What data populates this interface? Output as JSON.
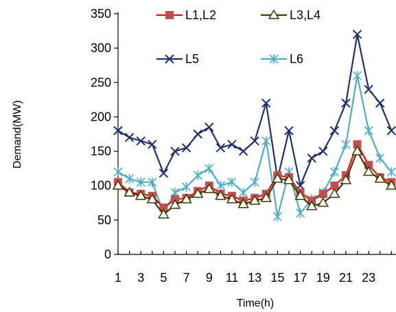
{
  "chart_data": {
    "type": "line",
    "xlabel": "Time(h)",
    "ylabel": "Demand(MW)",
    "ylim": [
      0,
      350
    ],
    "yticks": [
      0,
      50,
      100,
      150,
      200,
      250,
      300,
      350
    ],
    "x": [
      1,
      2,
      3,
      4,
      5,
      6,
      7,
      8,
      9,
      10,
      11,
      12,
      13,
      14,
      15,
      16,
      17,
      18,
      19,
      20,
      21,
      22,
      23,
      24,
      25
    ],
    "xtick_labels": [
      "1",
      "3",
      "5",
      "7",
      "9",
      "11",
      "13",
      "15",
      "17",
      "19",
      "21",
      "23"
    ],
    "xtick_positions": [
      1,
      3,
      5,
      7,
      9,
      11,
      13,
      15,
      17,
      19,
      21,
      23
    ],
    "legend_position": "top",
    "series": [
      {
        "name": "L1,L2",
        "color": "#ff0000",
        "marker": "square",
        "marker_color": "#c0504d",
        "values": [
          105,
          90,
          88,
          85,
          68,
          80,
          82,
          92,
          100,
          88,
          85,
          78,
          82,
          88,
          115,
          112,
          90,
          78,
          88,
          100,
          115,
          160,
          130,
          112,
          105
        ]
      },
      {
        "name": "L3,L4",
        "color": "#3a3a00",
        "marker": "triangle",
        "marker_color": "#3a3a00",
        "values": [
          100,
          90,
          85,
          80,
          58,
          72,
          80,
          88,
          95,
          85,
          80,
          73,
          78,
          82,
          110,
          108,
          85,
          70,
          75,
          88,
          108,
          150,
          120,
          110,
          100
        ]
      },
      {
        "name": "L5",
        "color": "#1f2f6e",
        "marker": "x",
        "marker_color": "#1f2f6e",
        "values": [
          180,
          170,
          165,
          160,
          118,
          150,
          155,
          175,
          185,
          155,
          160,
          150,
          165,
          220,
          110,
          180,
          100,
          140,
          150,
          180,
          220,
          320,
          240,
          220,
          180
        ]
      },
      {
        "name": "L6",
        "color": "#4bacc6",
        "marker": "star",
        "marker_color": "#4bacc6",
        "values": [
          120,
          110,
          105,
          105,
          60,
          90,
          98,
          115,
          125,
          100,
          105,
          90,
          105,
          165,
          55,
          120,
          60,
          80,
          90,
          120,
          160,
          260,
          180,
          140,
          120
        ]
      }
    ]
  }
}
